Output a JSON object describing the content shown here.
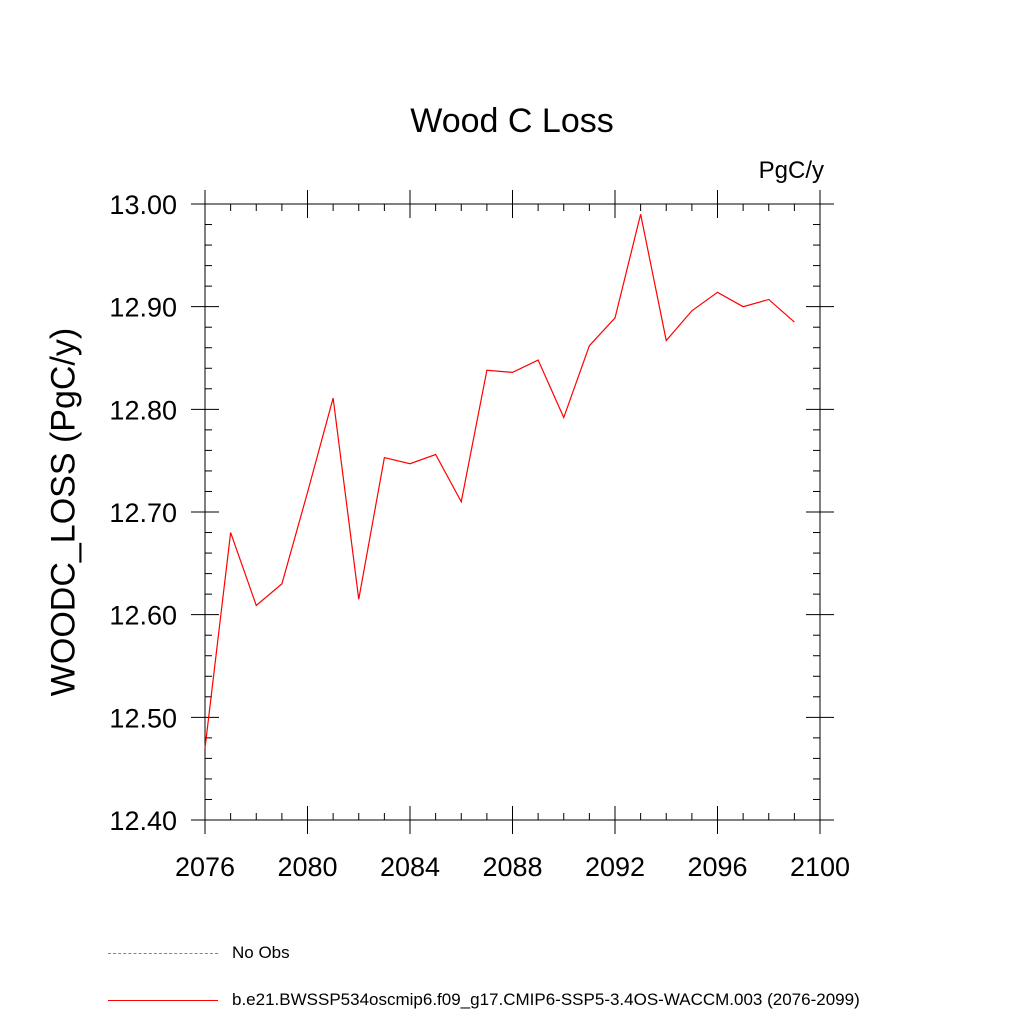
{
  "chart_data": {
    "type": "line",
    "title": "Wood C Loss",
    "units_label": "PgC/y",
    "ylabel": "WOODC_LOSS  (PgC/y)",
    "xlabel": "",
    "xlim": [
      2076,
      2100
    ],
    "ylim": [
      12.4,
      13.0
    ],
    "x_ticks": [
      2076,
      2080,
      2084,
      2088,
      2092,
      2096,
      2100
    ],
    "y_ticks": [
      "12.40",
      "12.50",
      "12.60",
      "12.70",
      "12.80",
      "12.90",
      "13.00"
    ],
    "grid": false,
    "series": [
      {
        "name": "b.e21.BWSSP534oscmip6.f09_g17.CMIP6-SSP5-3.4OS-WACCM.003 (2076-2099)",
        "color": "#ff0000",
        "x": [
          2076,
          2077,
          2078,
          2079,
          2080,
          2081,
          2082,
          2083,
          2084,
          2085,
          2086,
          2087,
          2088,
          2089,
          2090,
          2091,
          2092,
          2093,
          2094,
          2095,
          2096,
          2097,
          2098,
          2099
        ],
        "y": [
          12.47,
          12.68,
          12.609,
          12.63,
          12.719,
          12.811,
          12.615,
          12.753,
          12.747,
          12.756,
          12.71,
          12.838,
          12.836,
          12.848,
          12.792,
          12.862,
          12.889,
          12.99,
          12.867,
          12.896,
          12.914,
          12.9,
          12.907,
          12.885
        ]
      }
    ],
    "legend": {
      "placement": "bottom-left",
      "entries": [
        {
          "label": "No Obs",
          "color": "#7b7bd6",
          "style": "dashed"
        },
        {
          "label": "b.e21.BWSSP534oscmip6.f09_g17.CMIP6-SSP5-3.4OS-WACCM.003 (2076-2099)",
          "color": "#ff0000",
          "style": "solid"
        }
      ]
    }
  }
}
